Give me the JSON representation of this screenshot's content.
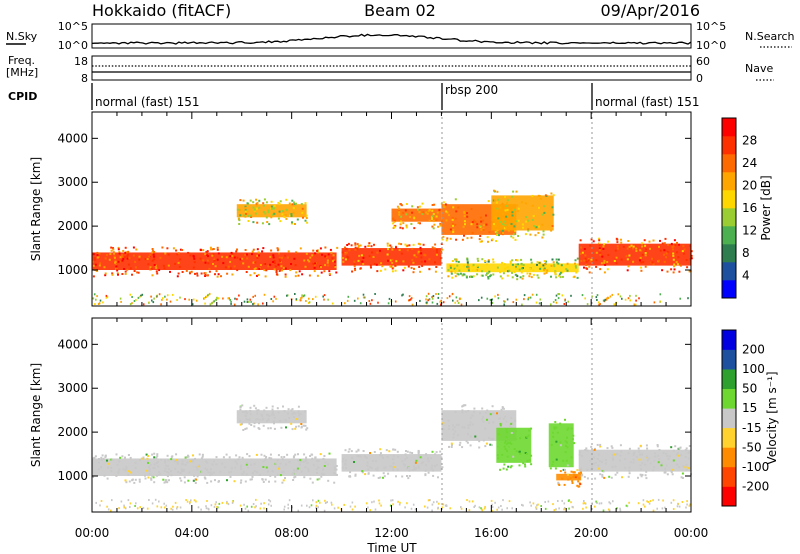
{
  "header": {
    "station": "Hokkaido (fitACF)",
    "beam": "Beam 02",
    "date": "09/Apr/2016"
  },
  "nsky_panel": {
    "left_label": "N.Sky",
    "right_label": "N.Search",
    "left_ticks": [
      "10^5",
      "10^0"
    ],
    "right_ticks": [
      "10^5",
      "10^0"
    ]
  },
  "freq_panel": {
    "left_label_1": "Freq.",
    "left_label_2": "[MHz]",
    "left_ticks": [
      "18",
      "8"
    ],
    "right_label": "Nave",
    "right_ticks": [
      "60",
      "0"
    ]
  },
  "cpid_panel": {
    "label": "CPID",
    "segments": [
      {
        "name": "normal (fast) 151",
        "start_hour": 0,
        "end_hour": 14
      },
      {
        "name": "rbsp 200",
        "start_hour": 14,
        "end_hour": 20
      },
      {
        "name": "normal (fast) 151",
        "start_hour": 20,
        "end_hour": 24
      }
    ]
  },
  "colors": {
    "power": [
      "#0000ff",
      "#1e50a0",
      "#2e7d4f",
      "#4caf50",
      "#9acd32",
      "#ffd700",
      "#ffa500",
      "#ff6a00",
      "#ff3000",
      "#ff0000"
    ],
    "velocity": [
      "#ff0000",
      "#ff4500",
      "#ff8c00",
      "#ffd230",
      "#c8c8c8",
      "#6ed830",
      "#2ea02e",
      "#1e50a0",
      "#0000e0"
    ]
  },
  "chart_data": [
    {
      "type": "heatmap",
      "name": "Power",
      "ylabel": "Slant Range [km]",
      "colorbar_label": "Power [dB]",
      "colorbar_ticks": [
        "28",
        "24",
        "20",
        "16",
        "12",
        "8",
        "4"
      ],
      "x_range_hours": [
        0,
        24
      ],
      "y_range_km": [
        180,
        4600
      ],
      "y_ticks": [
        "4000",
        "3000",
        "2000",
        "1000"
      ],
      "y_tick_values": [
        4000,
        3000,
        2000,
        1000
      ],
      "echo_bands": [
        {
          "start_hour": 0.0,
          "end_hour": 9.8,
          "range_start_km": 1000,
          "range_end_km": 1400,
          "power_db": 28
        },
        {
          "start_hour": 5.8,
          "end_hour": 8.6,
          "range_start_km": 2200,
          "range_end_km": 2500,
          "power_db": 20
        },
        {
          "start_hour": 10.0,
          "end_hour": 14.0,
          "range_start_km": 1100,
          "range_end_km": 1500,
          "power_db": 26
        },
        {
          "start_hour": 12.0,
          "end_hour": 14.0,
          "range_start_km": 2100,
          "range_end_km": 2400,
          "power_db": 24
        },
        {
          "start_hour": 14.0,
          "end_hour": 17.0,
          "range_start_km": 1800,
          "range_end_km": 2500,
          "power_db": 24
        },
        {
          "start_hour": 14.2,
          "end_hour": 19.5,
          "range_start_km": 950,
          "range_end_km": 1150,
          "power_db": 18
        },
        {
          "start_hour": 16.0,
          "end_hour": 18.5,
          "range_start_km": 1900,
          "range_end_km": 2700,
          "power_db": 20
        },
        {
          "start_hour": 19.5,
          "end_hour": 24.0,
          "range_start_km": 1100,
          "range_end_km": 1600,
          "power_db": 26
        }
      ]
    },
    {
      "type": "heatmap",
      "name": "Velocity",
      "ylabel": "Slant Range [km]",
      "colorbar_label": "Velocity [m s⁻¹]",
      "colorbar_ticks": [
        "200",
        "100",
        "50",
        "15",
        "-15",
        "-50",
        "-100",
        "-200"
      ],
      "xlabel": "Time UT",
      "x_ticks": [
        "00:00",
        "04:00",
        "08:00",
        "12:00",
        "16:00",
        "20:00",
        "00:00"
      ],
      "x_tick_values": [
        0,
        4,
        8,
        12,
        16,
        20,
        24
      ],
      "x_range_hours": [
        0,
        24
      ],
      "y_range_km": [
        180,
        4600
      ],
      "y_ticks": [
        "4000",
        "3000",
        "2000",
        "1000"
      ],
      "y_tick_values": [
        4000,
        3000,
        2000,
        1000
      ],
      "echo_bands": [
        {
          "start_hour": 0.0,
          "end_hour": 9.8,
          "range_start_km": 1000,
          "range_end_km": 1400,
          "velocity_ms": 0
        },
        {
          "start_hour": 5.8,
          "end_hour": 8.6,
          "range_start_km": 2200,
          "range_end_km": 2500,
          "velocity_ms": 0
        },
        {
          "start_hour": 10.0,
          "end_hour": 14.0,
          "range_start_km": 1100,
          "range_end_km": 1500,
          "velocity_ms": 0
        },
        {
          "start_hour": 14.0,
          "end_hour": 17.0,
          "range_start_km": 1800,
          "range_end_km": 2500,
          "velocity_ms": 0
        },
        {
          "start_hour": 16.2,
          "end_hour": 17.6,
          "range_start_km": 1300,
          "range_end_km": 2100,
          "velocity_ms": 40
        },
        {
          "start_hour": 18.3,
          "end_hour": 19.3,
          "range_start_km": 1200,
          "range_end_km": 2200,
          "velocity_ms": 40
        },
        {
          "start_hour": 18.6,
          "end_hour": 19.6,
          "range_start_km": 900,
          "range_end_km": 1050,
          "velocity_ms": -60
        },
        {
          "start_hour": 19.5,
          "end_hour": 24.0,
          "range_start_km": 1100,
          "range_end_km": 1600,
          "velocity_ms": 0
        }
      ]
    }
  ]
}
